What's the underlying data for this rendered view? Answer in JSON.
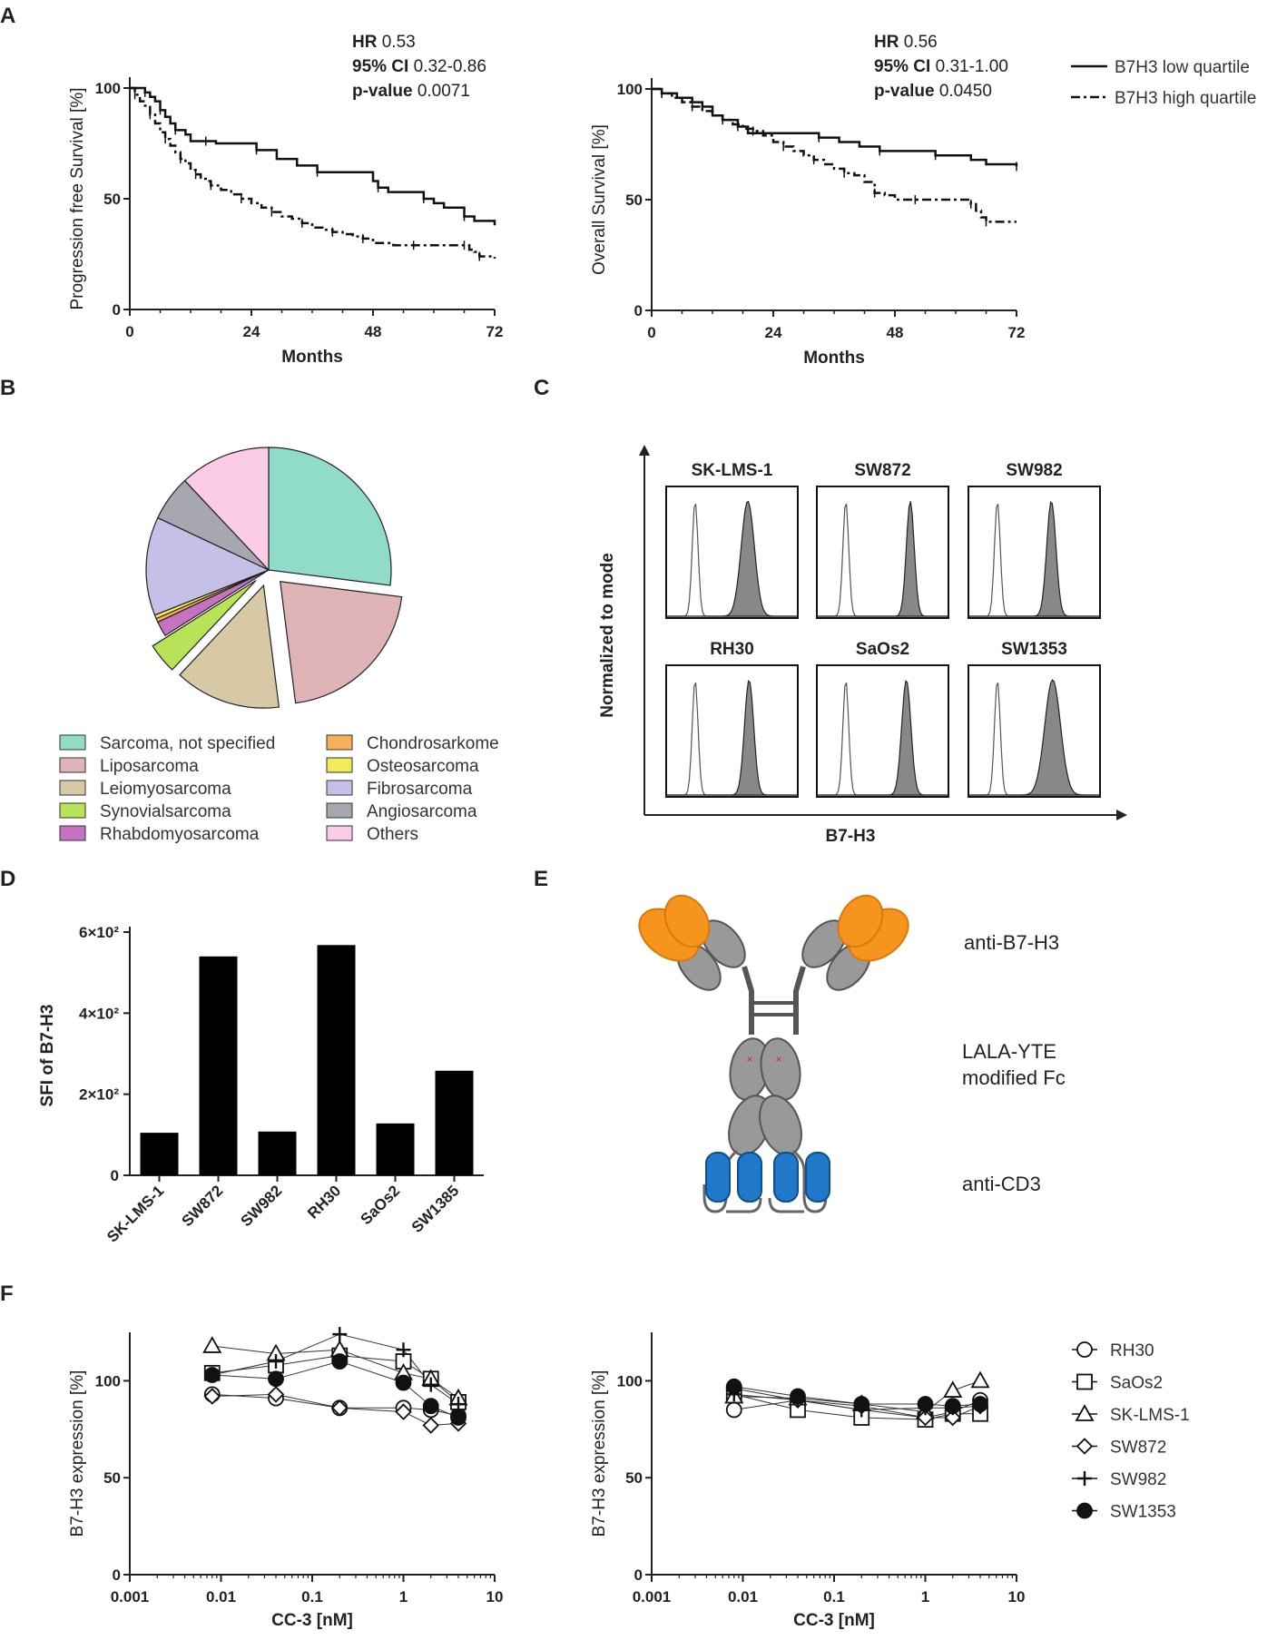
{
  "panels": {
    "A": "A",
    "B": "B",
    "C": "C",
    "D": "D",
    "E": "E",
    "F": "F"
  },
  "chart_data": [
    {
      "id": "A1",
      "type": "line",
      "xlabel": "Months",
      "ylabel": "Progression free Survival [%]",
      "xlim": [
        0,
        72
      ],
      "ylim": [
        0,
        100
      ],
      "xticks": [
        "0",
        "24",
        "48",
        "72"
      ],
      "yticks": [
        "0",
        "50",
        "100"
      ],
      "stats": {
        "hr_label": "HR",
        "hr": "0.53",
        "ci_label": "95% CI",
        "ci": "0.32-0.86",
        "p_label": "p-value",
        "p": "0.0071"
      },
      "series": [
        {
          "name": "B7H3 low quartile",
          "x": [
            0,
            3,
            4,
            5,
            6,
            7,
            8,
            9,
            11,
            12,
            15,
            17,
            21,
            25,
            29,
            33,
            37,
            42,
            48,
            49,
            51,
            54,
            58,
            60,
            62,
            66,
            68,
            72
          ],
          "y": [
            100,
            98,
            96,
            94,
            90,
            87,
            84,
            81,
            79,
            76,
            76,
            75,
            75,
            72,
            68,
            65,
            62,
            62,
            58,
            55,
            53,
            53,
            50,
            48,
            46,
            42,
            40,
            38
          ]
        },
        {
          "name": "B7H3 high quartile",
          "x": [
            0,
            1,
            2,
            3,
            4,
            5,
            6,
            7,
            8,
            9,
            10,
            11,
            12,
            13,
            14,
            15,
            16,
            18,
            20,
            22,
            24,
            26,
            28,
            30,
            32,
            34,
            36,
            38,
            40,
            42,
            44,
            46,
            48,
            52,
            56,
            60,
            64,
            66,
            67,
            68,
            69,
            72
          ],
          "y": [
            100,
            97,
            94,
            92,
            88,
            84,
            80,
            77,
            74,
            71,
            68,
            66,
            63,
            61,
            59,
            58,
            56,
            54,
            52,
            50,
            48,
            46,
            44,
            42,
            41,
            39,
            37,
            36,
            35,
            34,
            33,
            32,
            30,
            29,
            29,
            29,
            29,
            29,
            27,
            26,
            24,
            23
          ]
        }
      ]
    },
    {
      "id": "A2",
      "type": "line",
      "xlabel": "Months",
      "ylabel": "Overall Survival [%]",
      "xlim": [
        0,
        72
      ],
      "ylim": [
        0,
        100
      ],
      "xticks": [
        "0",
        "24",
        "48",
        "72"
      ],
      "yticks": [
        "0",
        "50",
        "100"
      ],
      "stats": {
        "hr_label": "HR",
        "hr": "0.56",
        "ci_label": "95% CI",
        "ci": "0.31-1.00",
        "p_label": "p-value",
        "p": "0.0450"
      },
      "series": [
        {
          "name": "B7H3 low quartile",
          "x": [
            0,
            2,
            5,
            8,
            10,
            12,
            14,
            17,
            19,
            27,
            33,
            37,
            41,
            45,
            48,
            54,
            56,
            63,
            66,
            72
          ],
          "y": [
            100,
            98,
            96,
            94,
            92,
            88,
            86,
            83,
            80,
            80,
            78,
            76,
            74,
            72,
            72,
            72,
            70,
            68,
            66,
            65
          ]
        },
        {
          "name": "B7H3 high quartile",
          "x": [
            0,
            2,
            4,
            6,
            8,
            10,
            12,
            14,
            16,
            18,
            20,
            22,
            24,
            26,
            28,
            30,
            32,
            34,
            36,
            38,
            40,
            42,
            44,
            46,
            48,
            52,
            58,
            62,
            63,
            64,
            65,
            66,
            72
          ],
          "y": [
            100,
            98,
            96,
            94,
            92,
            90,
            88,
            86,
            84,
            82,
            81,
            79,
            76,
            74,
            72,
            70,
            68,
            66,
            64,
            62,
            61,
            58,
            53,
            52,
            50,
            50,
            50,
            50,
            48,
            45,
            42,
            40,
            40
          ]
        }
      ],
      "legend": [
        "B7H3 low quartile",
        "B7H3 high quartile"
      ]
    },
    {
      "id": "B",
      "type": "pie",
      "labels": [
        "Sarcoma, not specified",
        "Liposarcoma",
        "Leiomyosarcoma",
        "Synovialsarcoma",
        "Rhabdomyosarcoma",
        "Chondrosarkome",
        "Osteosarcoma",
        "Fibrosarcoma",
        "Angiosarcoma",
        "Others"
      ],
      "values": [
        27,
        21,
        14,
        4,
        2,
        0.5,
        0.5,
        13,
        6,
        12
      ],
      "colors": [
        "#91DCC8",
        "#DEB4B6",
        "#D8C9A6",
        "#B8E258",
        "#C772C1",
        "#F8B15A",
        "#F1EA5A",
        "#C4C0E8",
        "#A7A7AF",
        "#FBCBE8"
      ],
      "exploded": [
        false,
        true,
        true,
        true,
        false,
        false,
        false,
        false,
        false,
        false
      ]
    },
    {
      "id": "C",
      "type": "histogram-grid",
      "ylabel": "Normalized to mode",
      "xlabel": "B7-H3",
      "cells": [
        "SK-LMS-1",
        "SW872",
        "SW982",
        "RH30",
        "SaOs2",
        "SW1353"
      ],
      "positive_peak": [
        0.62,
        0.71,
        0.63,
        0.63,
        0.68,
        0.64
      ],
      "positive_width": [
        0.05,
        0.03,
        0.035,
        0.035,
        0.035,
        0.06
      ]
    },
    {
      "id": "D",
      "type": "bar",
      "categories": [
        "SK-LMS-1",
        "SW872",
        "SW982",
        "RH30",
        "SaOs2",
        "SW1385"
      ],
      "values": [
        105,
        540,
        108,
        568,
        128,
        258
      ],
      "ylabel": "SFI of B7-H3",
      "ylim": [
        0,
        600
      ],
      "yticks": [
        0,
        200,
        400,
        600
      ],
      "ytick_labels": [
        "0",
        "2×10²",
        "4×10²",
        "6×10²"
      ]
    },
    {
      "id": "F1",
      "type": "scatter",
      "xscale": "log",
      "xlabel": "CC-3 [nM]",
      "ylabel": "B7-H3 expression [%]",
      "xlim": [
        0.001,
        10
      ],
      "ylim": [
        0,
        125
      ],
      "xticks": [
        0.001,
        0.01,
        0.1,
        1,
        10
      ],
      "xtick_labels": [
        "0.001",
        "0.01",
        "0.1",
        "1",
        "10"
      ],
      "yticks": [
        0,
        50,
        100
      ],
      "x": [
        0.008,
        0.04,
        0.2,
        1,
        2,
        4
      ],
      "series": [
        {
          "name": "RH30",
          "marker": "circle-open",
          "values": [
            93,
            91,
            86,
            86,
            85,
            82
          ]
        },
        {
          "name": "SaOs2",
          "marker": "square-open",
          "values": [
            104,
            108,
            113,
            110,
            101,
            89
          ]
        },
        {
          "name": "SK-LMS-1",
          "marker": "triangle-open",
          "values": [
            118,
            114,
            116,
            104,
            101,
            91
          ]
        },
        {
          "name": "SW872",
          "marker": "diamond-open",
          "values": [
            92,
            93,
            86,
            84,
            77,
            78
          ]
        },
        {
          "name": "SW982",
          "marker": "plus",
          "values": [
            103,
            110,
            124,
            116,
            98,
            88
          ]
        },
        {
          "name": "SW1353",
          "marker": "circle-filled",
          "values": [
            103,
            101,
            110,
            99,
            87,
            81
          ]
        }
      ]
    },
    {
      "id": "F2",
      "type": "scatter",
      "xscale": "log",
      "xlabel": "CC-3 [nM]",
      "ylabel": "B7-H3 expression [%]",
      "xlim": [
        0.001,
        10
      ],
      "ylim": [
        0,
        125
      ],
      "xticks": [
        0.001,
        0.01,
        0.1,
        1,
        10
      ],
      "xtick_labels": [
        "0.001",
        "0.01",
        "0.1",
        "1",
        "10"
      ],
      "yticks": [
        0,
        50,
        100
      ],
      "x": [
        0.008,
        0.04,
        0.2,
        1,
        2,
        4
      ],
      "series": [
        {
          "name": "RH30",
          "marker": "circle-open",
          "values": [
            85,
            90,
            85,
            81,
            84,
            90
          ]
        },
        {
          "name": "SaOs2",
          "marker": "square-open",
          "values": [
            93,
            85,
            81,
            80,
            83,
            83
          ]
        },
        {
          "name": "SK-LMS-1",
          "marker": "triangle-open",
          "values": [
            92,
            91,
            88,
            84,
            95,
            100
          ]
        },
        {
          "name": "SW872",
          "marker": "diamond-open",
          "values": [
            96,
            90,
            87,
            81,
            81,
            87
          ]
        },
        {
          "name": "SW982",
          "marker": "plus",
          "values": [
            93,
            90,
            85,
            86,
            86,
            87
          ]
        },
        {
          "name": "SW1353",
          "marker": "circle-filled",
          "values": [
            97,
            92,
            88,
            88,
            87,
            88
          ]
        }
      ],
      "legend": [
        "RH30",
        "SaOs2",
        "SK-LMS-1",
        "SW872",
        "SW982",
        "SW1353"
      ]
    }
  ],
  "diagram_E": {
    "labels": [
      "anti-B7-H3",
      "LALA-YTE",
      "modified Fc",
      "anti-CD3"
    ],
    "colors": {
      "fab": "#F7941D",
      "fab_dark": "#D97A0A",
      "chain": "#999999",
      "chain_stroke": "#555555",
      "cd3": "#1F78C8",
      "mutation": "#E02020"
    }
  }
}
